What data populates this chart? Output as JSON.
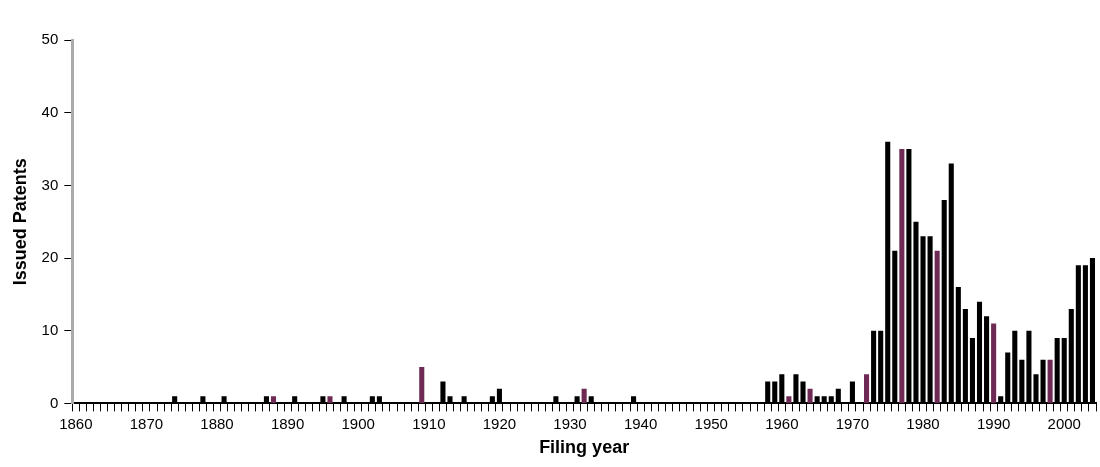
{
  "chart_data": {
    "type": "bar",
    "xlabel": "Filing year",
    "ylabel": "Issued Patents",
    "categories": [
      "1860",
      null,
      null,
      null,
      null,
      null,
      null,
      null,
      null,
      null,
      "1870",
      null,
      null,
      null,
      null,
      null,
      null,
      null,
      null,
      null,
      "1880",
      null,
      null,
      null,
      null,
      null,
      null,
      null,
      null,
      null,
      "1890",
      null,
      null,
      null,
      null,
      null,
      null,
      null,
      null,
      null,
      "1900",
      null,
      null,
      null,
      null,
      null,
      null,
      null,
      null,
      null,
      "1910",
      null,
      null,
      null,
      null,
      null,
      null,
      null,
      null,
      null,
      "1920",
      null,
      null,
      null,
      null,
      null,
      null,
      null,
      null,
      null,
      "1930",
      null,
      null,
      null,
      null,
      null,
      null,
      null,
      null,
      null,
      "1940",
      null,
      null,
      null,
      null,
      null,
      null,
      null,
      null,
      null,
      "1950",
      null,
      null,
      null,
      null,
      null,
      null,
      null,
      null,
      null,
      "1960",
      null,
      null,
      null,
      null,
      null,
      null,
      null,
      null,
      null,
      "1970",
      null,
      null,
      null,
      null,
      null,
      null,
      null,
      null,
      null,
      "1980",
      null,
      null,
      null,
      null,
      null,
      null,
      null,
      null,
      null,
      "1990",
      null,
      null,
      null,
      null,
      null,
      null,
      null,
      null,
      null,
      "2000",
      null,
      null,
      null,
      null
    ],
    "values": [
      0,
      0,
      0,
      0,
      0,
      0,
      0,
      0,
      0,
      0,
      0,
      0,
      0,
      0,
      1,
      0,
      0,
      0,
      1,
      0,
      0,
      1,
      0,
      0,
      0,
      0,
      0,
      1,
      1,
      0,
      0,
      1,
      0,
      0,
      0,
      1,
      1,
      0,
      1,
      0,
      0,
      0,
      1,
      1,
      0,
      0,
      0,
      0,
      0,
      5,
      0,
      0,
      3,
      1,
      0,
      1,
      0,
      0,
      0,
      1,
      2,
      0,
      0,
      0,
      0,
      0,
      0,
      0,
      1,
      0,
      0,
      1,
      2,
      1,
      0,
      0,
      0,
      0,
      0,
      1,
      0,
      0,
      0,
      0,
      0,
      0,
      0,
      0,
      0,
      0,
      0,
      0,
      0,
      0,
      0,
      0,
      0,
      0,
      3,
      3,
      4,
      1,
      4,
      3,
      2,
      1,
      1,
      1,
      2,
      0,
      3,
      0,
      4,
      10,
      10,
      36,
      21,
      35,
      35,
      25,
      23,
      23,
      21,
      28,
      33,
      16,
      13,
      9,
      14,
      12,
      11,
      1,
      7,
      10,
      6,
      10,
      4,
      6,
      6,
      9,
      9,
      13,
      19,
      19,
      20
    ],
    "colors": [
      "#000000",
      "#000000",
      "#000000",
      "#000000",
      "#000000",
      "#000000",
      "#000000",
      "#000000",
      "#000000",
      "#000000",
      "#000000",
      "#000000",
      "#000000",
      "#000000",
      "#000000",
      "#000000",
      "#000000",
      "#000000",
      "#000000",
      "#000000",
      "#000000",
      "#000000",
      "#000000",
      "#000000",
      "#000000",
      "#000000",
      "#000000",
      "#000000",
      "#6e2a55",
      "#000000",
      "#000000",
      "#000000",
      "#000000",
      "#000000",
      "#000000",
      "#000000",
      "#6e2a55",
      "#000000",
      "#000000",
      "#000000",
      "#000000",
      "#000000",
      "#000000",
      "#000000",
      "#000000",
      "#000000",
      "#000000",
      "#000000",
      "#000000",
      "#6e2a55",
      "#000000",
      "#000000",
      "#000000",
      "#000000",
      "#000000",
      "#000000",
      "#000000",
      "#000000",
      "#000000",
      "#000000",
      "#000000",
      "#000000",
      "#000000",
      "#000000",
      "#000000",
      "#000000",
      "#000000",
      "#000000",
      "#000000",
      "#000000",
      "#000000",
      "#000000",
      "#6e2a55",
      "#000000",
      "#000000",
      "#000000",
      "#000000",
      "#000000",
      "#000000",
      "#000000",
      "#000000",
      "#000000",
      "#000000",
      "#000000",
      "#000000",
      "#000000",
      "#000000",
      "#000000",
      "#000000",
      "#000000",
      "#000000",
      "#000000",
      "#000000",
      "#000000",
      "#000000",
      "#000000",
      "#000000",
      "#000000",
      "#000000",
      "#000000",
      "#000000",
      "#6e2a55",
      "#000000",
      "#000000",
      "#6e2a55",
      "#000000",
      "#000000",
      "#000000",
      "#000000",
      "#000000",
      "#000000",
      "#000000",
      "#6e2a55",
      "#000000",
      "#000000",
      "#000000",
      "#000000",
      "#6e2a55",
      "#000000",
      "#000000",
      "#000000",
      "#000000",
      "#6e2a55",
      "#000000",
      "#000000",
      "#000000",
      "#000000",
      "#000000",
      "#000000",
      "#000000",
      "#6e2a55",
      "#000000",
      "#000000",
      "#000000",
      "#000000",
      "#000000",
      "#000000",
      "#000000",
      "#6e2a55",
      "#000000",
      "#000000",
      "#000000",
      "#000000",
      "#000000",
      "#000000"
    ],
    "ylim": [
      0,
      50
    ],
    "yticks": [
      0,
      10,
      20,
      30,
      40,
      50
    ],
    "grid": false,
    "legend": false
  }
}
